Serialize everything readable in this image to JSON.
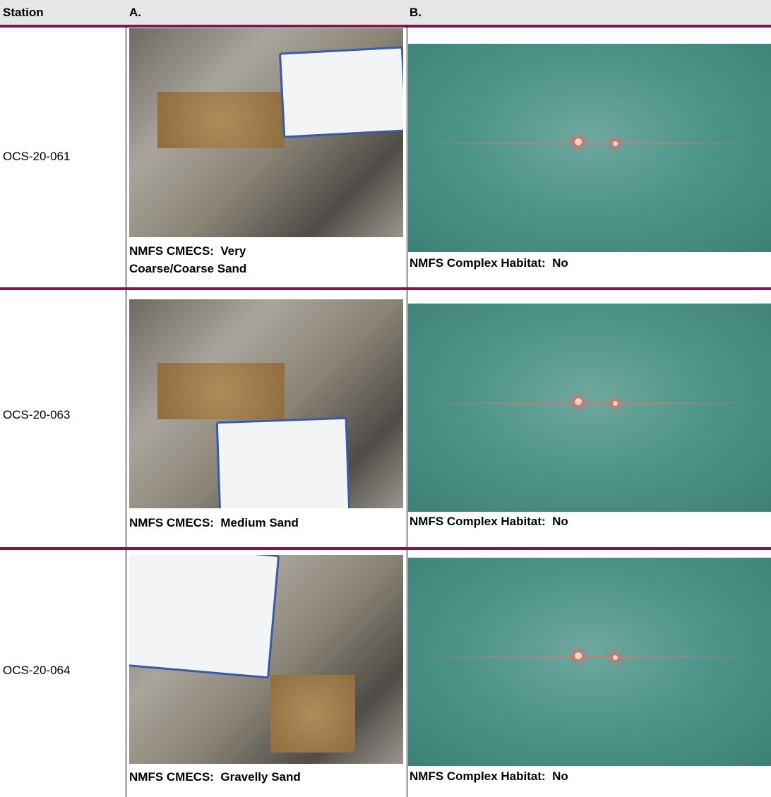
{
  "header": {
    "station": "Station",
    "a": "A.",
    "b": "B."
  },
  "rows": [
    {
      "station": "OCS-20-061",
      "a_caption": "NMFS CMECS:  Very Coarse/Coarse Sand",
      "b_caption": "NMFS Complex Habitat:  No"
    },
    {
      "station": "OCS-20-063",
      "a_caption": "NMFS CMECS:  Medium Sand",
      "b_caption": "NMFS Complex Habitat:  No"
    },
    {
      "station": "OCS-20-064",
      "a_caption": "NMFS CMECS:  Gravelly Sand",
      "b_caption": "NMFS Complex Habitat:  No"
    }
  ]
}
